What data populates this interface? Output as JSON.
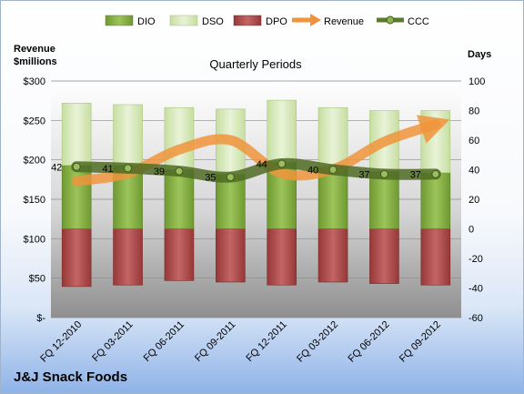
{
  "chart_data": {
    "type": "bar",
    "title": "Quarterly Periods",
    "company": "J&J Snack Foods",
    "categories": [
      "FQ 12-2010",
      "FQ 03-2011",
      "FQ 06-2011",
      "FQ 09-2011",
      "FQ 12-2011",
      "FQ 03-2012",
      "FQ 06-2012",
      "FQ 09-2012"
    ],
    "left_axis": {
      "label_line1": "Revenue",
      "label_line2": "$millions",
      "ticks": [
        "$-",
        "$50",
        "$100",
        "$150",
        "$200",
        "$250",
        "$300"
      ],
      "ylim": [
        0,
        300
      ]
    },
    "right_axis": {
      "label": "Days",
      "ticks": [
        "-60",
        "-40",
        "-20",
        "0",
        "20",
        "40",
        "60",
        "80",
        "100"
      ],
      "ylim": [
        -60,
        100
      ]
    },
    "legend": [
      "DIO",
      "DSO",
      "DPO",
      "Revenue",
      "CCC"
    ],
    "series": [
      {
        "name": "DIO",
        "axis": "days",
        "color": "#7daa3c",
        "values": [
          43,
          43,
          40,
          37,
          45,
          42,
          39,
          38
        ]
      },
      {
        "name": "DSO",
        "axis": "days",
        "color": "#d4e7b4",
        "values": [
          42,
          41,
          42,
          44,
          42,
          40,
          41,
          42
        ]
      },
      {
        "name": "DPO",
        "axis": "days",
        "color": "#b04a4a",
        "values": [
          -39,
          -38,
          -35,
          -36,
          -38,
          -36,
          -37,
          -38
        ]
      },
      {
        "name": "Revenue",
        "axis": "revenue",
        "color": "#f0943c",
        "values": [
          173,
          183,
          213,
          225,
          183,
          188,
          223,
          245
        ]
      },
      {
        "name": "CCC",
        "axis": "days",
        "color": "#5c7a2e",
        "values": [
          42,
          41,
          39,
          35,
          44,
          40,
          37,
          37
        ]
      }
    ],
    "ccc_labels": [
      "42",
      "41",
      "39",
      "35",
      "44",
      "40",
      "37",
      "37"
    ],
    "grid": true,
    "legend_position": "top"
  }
}
